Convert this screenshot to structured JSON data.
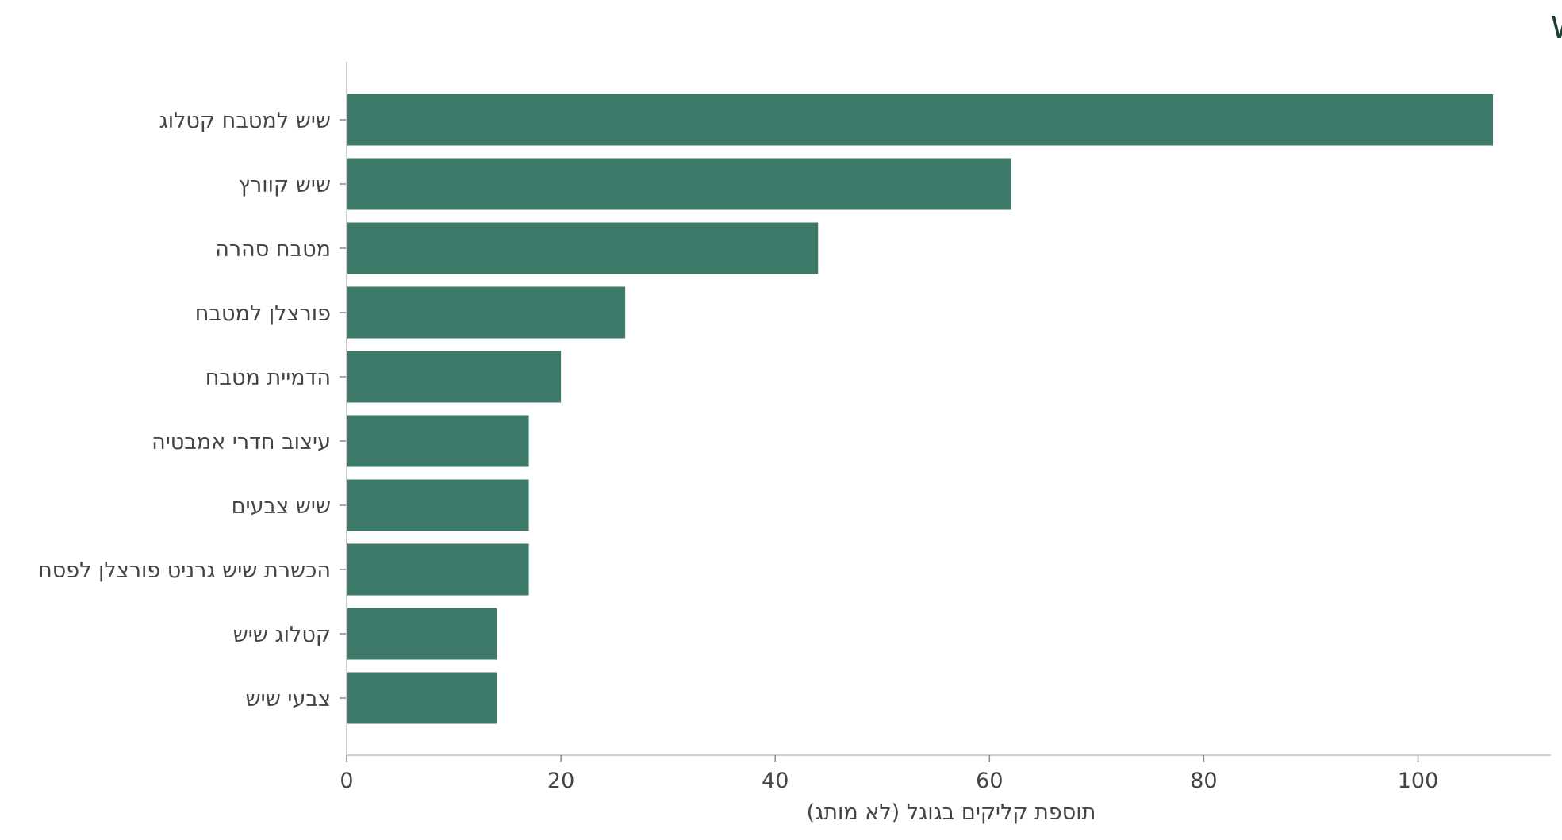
{
  "chart_data": {
    "type": "bar",
    "orientation": "horizontal",
    "title": "ביטויים רלוונטיים שעלו · WMT",
    "xlabel": "תוספת קליקים בגוגל (לא מותג)",
    "ylabel": "",
    "categories": [
      "שיש למטבח קטלוג",
      "שיש קוורץ",
      "מטבח סהרה",
      "פורצלן למטבח",
      "הדמיית מטבח",
      "עיצוב חדרי אמבטיה",
      "שיש צבעים",
      "הכשרת שיש גרניט פורצלן לפסח",
      "קטלוג שיש",
      "צבעי שיש"
    ],
    "values": [
      107,
      62,
      44,
      26,
      20,
      17,
      17,
      17,
      14,
      14
    ],
    "xlim": [
      0,
      112.4
    ],
    "xticks": [
      0,
      20,
      40,
      60,
      80,
      100
    ],
    "grid": false,
    "legend": "none",
    "colors": {
      "bar": "#3d7a6a",
      "title": "#1e3d33",
      "text": "#444444",
      "axis": "#cccccc"
    }
  }
}
